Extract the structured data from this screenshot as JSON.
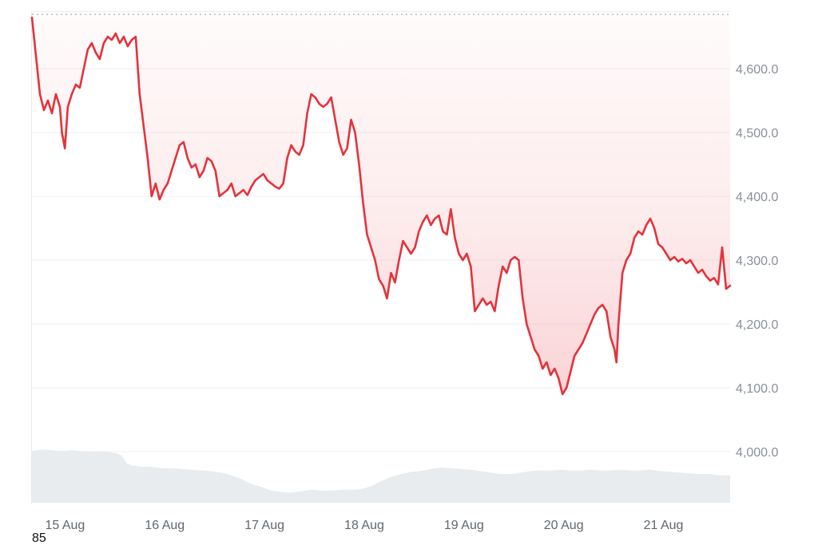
{
  "chart_data": {
    "type": "area",
    "title": "",
    "xlabel": "",
    "ylabel": "",
    "x_range": [
      0,
      7
    ],
    "ylim": [
      3920,
      4690
    ],
    "reference_line": 4685,
    "x_ticks": [
      {
        "x": 0.1,
        "label": "15 Aug"
      },
      {
        "x": 1.1,
        "label": "16 Aug"
      },
      {
        "x": 2.1,
        "label": "17 Aug"
      },
      {
        "x": 3.1,
        "label": "18 Aug"
      },
      {
        "x": 4.1,
        "label": "19 Aug"
      },
      {
        "x": 5.1,
        "label": "20 Aug"
      },
      {
        "x": 6.1,
        "label": "21 Aug"
      }
    ],
    "y_ticks": [
      {
        "value": 4000,
        "label": "4,000.0"
      },
      {
        "value": 4100,
        "label": "4,100.0"
      },
      {
        "value": 4200,
        "label": "4,200.0"
      },
      {
        "value": 4300,
        "label": "4,300.0"
      },
      {
        "value": 4400,
        "label": "4,400.0"
      },
      {
        "value": 4500,
        "label": "4,500.0"
      },
      {
        "value": 4600,
        "label": "4,600.0"
      }
    ],
    "series": [
      {
        "color": "#e5323b",
        "points": [
          [
            0.0,
            4680
          ],
          [
            0.04,
            4620
          ],
          [
            0.08,
            4560
          ],
          [
            0.12,
            4535
          ],
          [
            0.16,
            4550
          ],
          [
            0.2,
            4530
          ],
          [
            0.24,
            4560
          ],
          [
            0.28,
            4540
          ],
          [
            0.3,
            4500
          ],
          [
            0.33,
            4475
          ],
          [
            0.36,
            4540
          ],
          [
            0.4,
            4560
          ],
          [
            0.44,
            4575
          ],
          [
            0.48,
            4570
          ],
          [
            0.52,
            4600
          ],
          [
            0.56,
            4630
          ],
          [
            0.6,
            4640
          ],
          [
            0.64,
            4625
          ],
          [
            0.68,
            4615
          ],
          [
            0.72,
            4640
          ],
          [
            0.76,
            4650
          ],
          [
            0.8,
            4645
          ],
          [
            0.84,
            4655
          ],
          [
            0.88,
            4640
          ],
          [
            0.92,
            4650
          ],
          [
            0.96,
            4635
          ],
          [
            1.0,
            4645
          ],
          [
            1.04,
            4650
          ],
          [
            1.08,
            4560
          ],
          [
            1.12,
            4510
          ],
          [
            1.16,
            4460
          ],
          [
            1.2,
            4400
          ],
          [
            1.24,
            4420
          ],
          [
            1.28,
            4395
          ],
          [
            1.32,
            4410
          ],
          [
            1.36,
            4420
          ],
          [
            1.4,
            4440
          ],
          [
            1.44,
            4460
          ],
          [
            1.48,
            4480
          ],
          [
            1.52,
            4485
          ],
          [
            1.56,
            4460
          ],
          [
            1.6,
            4445
          ],
          [
            1.64,
            4450
          ],
          [
            1.68,
            4430
          ],
          [
            1.72,
            4440
          ],
          [
            1.76,
            4460
          ],
          [
            1.8,
            4455
          ],
          [
            1.84,
            4440
          ],
          [
            1.88,
            4400
          ],
          [
            1.92,
            4405
          ],
          [
            1.96,
            4410
          ],
          [
            2.0,
            4420
          ],
          [
            2.04,
            4400
          ],
          [
            2.08,
            4405
          ],
          [
            2.12,
            4410
          ],
          [
            2.16,
            4402
          ],
          [
            2.2,
            4415
          ],
          [
            2.24,
            4425
          ],
          [
            2.28,
            4430
          ],
          [
            2.32,
            4435
          ],
          [
            2.36,
            4425
          ],
          [
            2.4,
            4420
          ],
          [
            2.44,
            4415
          ],
          [
            2.48,
            4412
          ],
          [
            2.52,
            4420
          ],
          [
            2.56,
            4460
          ],
          [
            2.6,
            4480
          ],
          [
            2.64,
            4470
          ],
          [
            2.68,
            4465
          ],
          [
            2.72,
            4480
          ],
          [
            2.76,
            4530
          ],
          [
            2.8,
            4560
          ],
          [
            2.84,
            4555
          ],
          [
            2.88,
            4545
          ],
          [
            2.92,
            4540
          ],
          [
            2.96,
            4545
          ],
          [
            3.0,
            4555
          ],
          [
            3.04,
            4520
          ],
          [
            3.08,
            4485
          ],
          [
            3.12,
            4465
          ],
          [
            3.16,
            4475
          ],
          [
            3.2,
            4520
          ],
          [
            3.24,
            4500
          ],
          [
            3.28,
            4450
          ],
          [
            3.32,
            4390
          ],
          [
            3.36,
            4340
          ],
          [
            3.4,
            4320
          ],
          [
            3.44,
            4300
          ],
          [
            3.48,
            4270
          ],
          [
            3.52,
            4260
          ],
          [
            3.56,
            4240
          ],
          [
            3.6,
            4280
          ],
          [
            3.64,
            4265
          ],
          [
            3.68,
            4300
          ],
          [
            3.72,
            4330
          ],
          [
            3.76,
            4320
          ],
          [
            3.8,
            4310
          ],
          [
            3.84,
            4320
          ],
          [
            3.88,
            4345
          ],
          [
            3.92,
            4360
          ],
          [
            3.96,
            4370
          ],
          [
            4.0,
            4355
          ],
          [
            4.04,
            4365
          ],
          [
            4.08,
            4370
          ],
          [
            4.12,
            4345
          ],
          [
            4.16,
            4340
          ],
          [
            4.2,
            4380
          ],
          [
            4.24,
            4335
          ],
          [
            4.28,
            4310
          ],
          [
            4.32,
            4300
          ],
          [
            4.36,
            4310
          ],
          [
            4.4,
            4290
          ],
          [
            4.44,
            4220
          ],
          [
            4.48,
            4230
          ],
          [
            4.52,
            4240
          ],
          [
            4.56,
            4230
          ],
          [
            4.6,
            4235
          ],
          [
            4.64,
            4220
          ],
          [
            4.68,
            4260
          ],
          [
            4.72,
            4290
          ],
          [
            4.76,
            4280
          ],
          [
            4.8,
            4300
          ],
          [
            4.84,
            4305
          ],
          [
            4.88,
            4300
          ],
          [
            4.92,
            4240
          ],
          [
            4.96,
            4200
          ],
          [
            5.0,
            4180
          ],
          [
            5.04,
            4160
          ],
          [
            5.08,
            4150
          ],
          [
            5.12,
            4130
          ],
          [
            5.16,
            4140
          ],
          [
            5.2,
            4120
          ],
          [
            5.24,
            4130
          ],
          [
            5.28,
            4115
          ],
          [
            5.32,
            4090
          ],
          [
            5.36,
            4100
          ],
          [
            5.4,
            4125
          ],
          [
            5.44,
            4150
          ],
          [
            5.48,
            4160
          ],
          [
            5.52,
            4170
          ],
          [
            5.56,
            4185
          ],
          [
            5.6,
            4200
          ],
          [
            5.64,
            4215
          ],
          [
            5.68,
            4225
          ],
          [
            5.72,
            4230
          ],
          [
            5.76,
            4220
          ],
          [
            5.8,
            4180
          ],
          [
            5.84,
            4160
          ],
          [
            5.86,
            4140
          ],
          [
            5.88,
            4200
          ],
          [
            5.92,
            4280
          ],
          [
            5.96,
            4300
          ],
          [
            6.0,
            4310
          ],
          [
            6.04,
            4335
          ],
          [
            6.08,
            4345
          ],
          [
            6.12,
            4340
          ],
          [
            6.16,
            4355
          ],
          [
            6.2,
            4365
          ],
          [
            6.24,
            4350
          ],
          [
            6.28,
            4325
          ],
          [
            6.32,
            4320
          ],
          [
            6.36,
            4310
          ],
          [
            6.4,
            4300
          ],
          [
            6.44,
            4305
          ],
          [
            6.48,
            4298
          ],
          [
            6.52,
            4302
          ],
          [
            6.56,
            4295
          ],
          [
            6.6,
            4300
          ],
          [
            6.64,
            4290
          ],
          [
            6.68,
            4280
          ],
          [
            6.72,
            4285
          ],
          [
            6.76,
            4275
          ],
          [
            6.8,
            4268
          ],
          [
            6.84,
            4272
          ],
          [
            6.88,
            4262
          ],
          [
            6.92,
            4320
          ],
          [
            6.96,
            4255
          ],
          [
            7.0,
            4260
          ]
        ]
      }
    ],
    "volume": {
      "color": "#e9ecef",
      "ylim": [
        0,
        100
      ],
      "points": [
        [
          0.0,
          72
        ],
        [
          0.1,
          74
        ],
        [
          0.2,
          73
        ],
        [
          0.3,
          72
        ],
        [
          0.4,
          73
        ],
        [
          0.5,
          72
        ],
        [
          0.6,
          71
        ],
        [
          0.7,
          72
        ],
        [
          0.8,
          70
        ],
        [
          0.85,
          69
        ],
        [
          0.9,
          66
        ],
        [
          0.95,
          55
        ],
        [
          1.0,
          52
        ],
        [
          1.1,
          50
        ],
        [
          1.2,
          50
        ],
        [
          1.3,
          48
        ],
        [
          1.4,
          48
        ],
        [
          1.5,
          47
        ],
        [
          1.6,
          46
        ],
        [
          1.7,
          45
        ],
        [
          1.8,
          44
        ],
        [
          1.9,
          42
        ],
        [
          2.0,
          38
        ],
        [
          2.1,
          33
        ],
        [
          2.2,
          26
        ],
        [
          2.3,
          22
        ],
        [
          2.4,
          17
        ],
        [
          2.5,
          15
        ],
        [
          2.6,
          14
        ],
        [
          2.7,
          16
        ],
        [
          2.8,
          18
        ],
        [
          2.9,
          17
        ],
        [
          3.0,
          17
        ],
        [
          3.1,
          18
        ],
        [
          3.2,
          18
        ],
        [
          3.3,
          19
        ],
        [
          3.4,
          23
        ],
        [
          3.5,
          30
        ],
        [
          3.6,
          36
        ],
        [
          3.7,
          40
        ],
        [
          3.8,
          43
        ],
        [
          3.9,
          44
        ],
        [
          4.0,
          47
        ],
        [
          4.1,
          49
        ],
        [
          4.2,
          48
        ],
        [
          4.3,
          47
        ],
        [
          4.4,
          46
        ],
        [
          4.5,
          44
        ],
        [
          4.6,
          42
        ],
        [
          4.7,
          40
        ],
        [
          4.8,
          40
        ],
        [
          4.9,
          42
        ],
        [
          5.0,
          44
        ],
        [
          5.1,
          45
        ],
        [
          5.2,
          45
        ],
        [
          5.3,
          46
        ],
        [
          5.4,
          45
        ],
        [
          5.5,
          45
        ],
        [
          5.6,
          46
        ],
        [
          5.7,
          45
        ],
        [
          5.8,
          45
        ],
        [
          5.9,
          46
        ],
        [
          6.0,
          45
        ],
        [
          6.1,
          45
        ],
        [
          6.2,
          46
        ],
        [
          6.3,
          44
        ],
        [
          6.4,
          43
        ],
        [
          6.5,
          42
        ],
        [
          6.6,
          41
        ],
        [
          6.7,
          40
        ],
        [
          6.8,
          40
        ],
        [
          6.9,
          38
        ],
        [
          7.0,
          38
        ]
      ]
    }
  },
  "footnote": "85"
}
